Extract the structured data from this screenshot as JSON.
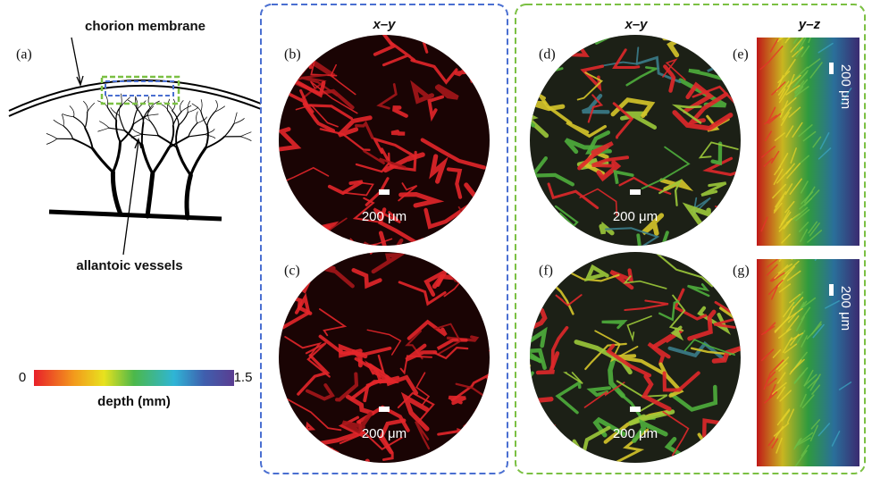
{
  "headers": {
    "xy_blue": "x–y",
    "xy_green": "x–y",
    "yz": "y–z"
  },
  "panel_a": {
    "label": "(a)",
    "membrane": "chorion membrane",
    "vessels": "allantoic vessels"
  },
  "colorbar": {
    "min": "0",
    "max": "1.5",
    "label": "depth (mm)"
  },
  "panels": [
    {
      "label": "(b)",
      "scale": "200 μm"
    },
    {
      "label": "(c)",
      "scale": "200 μm"
    },
    {
      "label": "(d)",
      "scale": "200 μm"
    },
    {
      "label": "(f)",
      "scale": "200 μm"
    },
    {
      "label": "(e)",
      "scale": "200 μm"
    },
    {
      "label": "(g)",
      "scale": "200 μm"
    }
  ]
}
